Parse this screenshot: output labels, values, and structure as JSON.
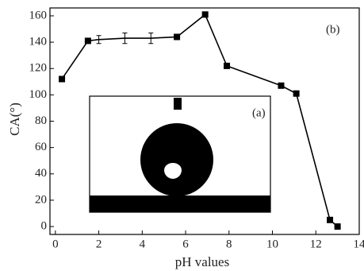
{
  "chart_data": {
    "type": "line",
    "xlabel": "pH values",
    "ylabel": "CA(°)",
    "annotations": [
      "(b)",
      "(a)"
    ],
    "series": [
      {
        "color": "#000000",
        "x": [
          0.3,
          1.5,
          2.0,
          3.2,
          4.4,
          5.6,
          6.9,
          7.9,
          10.4,
          11.1,
          12.65,
          13.0
        ],
        "values": [
          112,
          141,
          142,
          143,
          143,
          144,
          161,
          122,
          107,
          101,
          5,
          0
        ],
        "errors": [
          null,
          null,
          3,
          4,
          4,
          null,
          null,
          null,
          null,
          null,
          null,
          null
        ]
      }
    ],
    "xlim": [
      -0.25,
      14
    ],
    "xticks": [
      0,
      2,
      4,
      6,
      8,
      10,
      12,
      14
    ],
    "ylim": [
      -6,
      166
    ],
    "yticks": [
      0,
      20,
      40,
      60,
      80,
      100,
      120,
      140,
      160
    ]
  }
}
